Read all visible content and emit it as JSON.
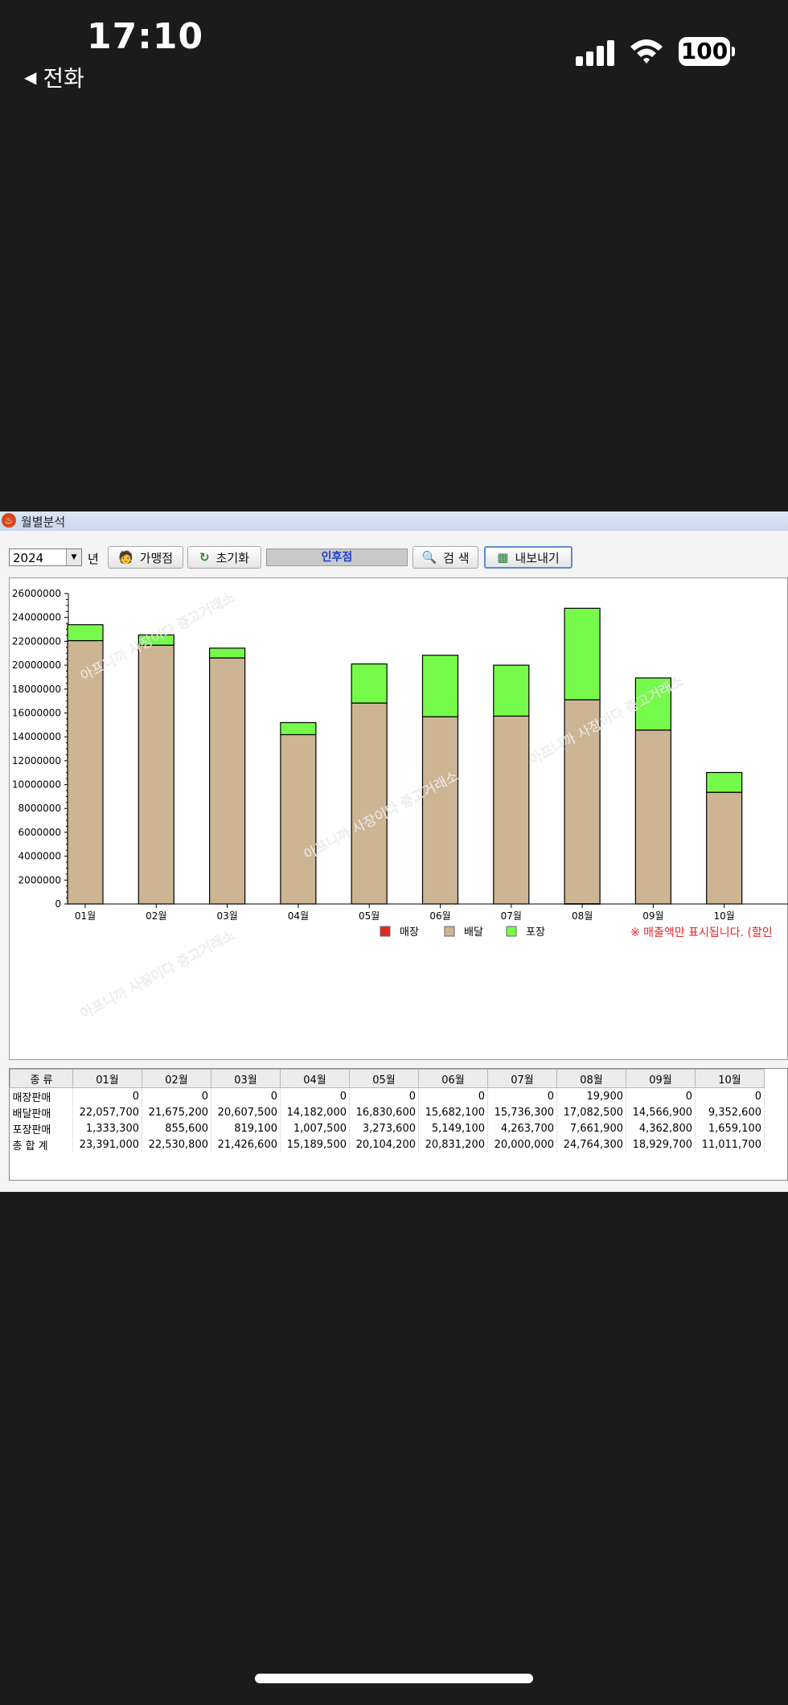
{
  "status_bar": {
    "time": "17:10",
    "back_label": "전화",
    "battery": "100"
  },
  "window": {
    "title": "월별분석"
  },
  "toolbar": {
    "year": "2024",
    "year_suffix": "년",
    "store_button": "가맹점",
    "reset_button": "초기화",
    "store_name": "인후점",
    "search_button": "검 색",
    "export_button": "내보내기"
  },
  "legend": {
    "items": [
      "매장",
      "배달",
      "포장"
    ],
    "colors": [
      "#e02a20",
      "#cdb594",
      "#76fb4a"
    ]
  },
  "notice": "※ 매출액만 표시됩니다. (할인",
  "watermark": "아프니까 사장이다 중고거래소",
  "chart_data": {
    "type": "bar",
    "stacked": true,
    "categories": [
      "01월",
      "02월",
      "03월",
      "04월",
      "05월",
      "06월",
      "07월",
      "08월",
      "09월",
      "10월"
    ],
    "series": [
      {
        "name": "매장",
        "values": [
          0,
          0,
          0,
          0,
          0,
          0,
          0,
          19900,
          0,
          0
        ]
      },
      {
        "name": "배달",
        "values": [
          22057700,
          21675200,
          20607500,
          14182000,
          16830600,
          15682100,
          15736300,
          17082500,
          14566900,
          9352600
        ]
      },
      {
        "name": "포장",
        "values": [
          1333300,
          855600,
          819100,
          1007500,
          3273600,
          5149100,
          4263700,
          7661900,
          4362800,
          1659100
        ]
      }
    ],
    "ylim": [
      0,
      26000000
    ],
    "yticks": [
      "0",
      "2000000",
      "4000000",
      "6000000",
      "8000000",
      "10000000",
      "12000000",
      "14000000",
      "16000000",
      "18000000",
      "20000000",
      "22000000",
      "24000000",
      "26000000"
    ],
    "legend_position": "bottom"
  },
  "table": {
    "headers": [
      "종 류",
      "01월",
      "02월",
      "03월",
      "04월",
      "05월",
      "06월",
      "07월",
      "08월",
      "09월",
      "10월"
    ],
    "rows": [
      {
        "label": "매장판매",
        "values": [
          "0",
          "0",
          "0",
          "0",
          "0",
          "0",
          "0",
          "19,900",
          "0",
          "0"
        ]
      },
      {
        "label": "배달판매",
        "values": [
          "22,057,700",
          "21,675,200",
          "20,607,500",
          "14,182,000",
          "16,830,600",
          "15,682,100",
          "15,736,300",
          "17,082,500",
          "14,566,900",
          "9,352,600"
        ]
      },
      {
        "label": "포장판매",
        "values": [
          "1,333,300",
          "855,600",
          "819,100",
          "1,007,500",
          "3,273,600",
          "5,149,100",
          "4,263,700",
          "7,661,900",
          "4,362,800",
          "1,659,100"
        ]
      },
      {
        "label": "총 합 계",
        "values": [
          "23,391,000",
          "22,530,800",
          "21,426,600",
          "15,189,500",
          "20,104,200",
          "20,831,200",
          "20,000,000",
          "24,764,300",
          "18,929,700",
          "11,011,700"
        ]
      }
    ]
  }
}
